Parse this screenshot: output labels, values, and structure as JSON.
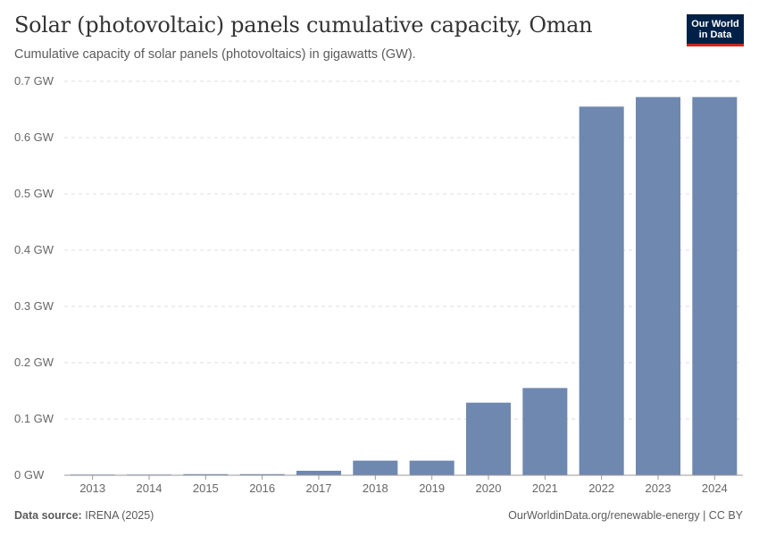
{
  "header": {
    "title": "Solar (photovoltaic) panels cumulative capacity, Oman",
    "subtitle": "Cumulative capacity of solar panels (photovoltaics) in gigawatts (GW).",
    "logo_line1": "Our World",
    "logo_line2": "in Data"
  },
  "footer": {
    "source_label": "Data source:",
    "source_value": "IRENA (2025)",
    "right_text": "OurWorldinData.org/renewable-energy | CC BY"
  },
  "colors": {
    "bar": "#6f88b0",
    "grid": "#dddddd",
    "axis": "#999999"
  },
  "chart_data": {
    "type": "bar",
    "title": "Solar (photovoltaic) panels cumulative capacity, Oman",
    "xlabel": "",
    "ylabel": "",
    "unit": "GW",
    "categories": [
      "2013",
      "2014",
      "2015",
      "2016",
      "2017",
      "2018",
      "2019",
      "2020",
      "2021",
      "2022",
      "2023",
      "2024"
    ],
    "values": [
      0.0008,
      0.001,
      0.002,
      0.002,
      0.008,
      0.026,
      0.026,
      0.129,
      0.155,
      0.655,
      0.672,
      0.672
    ],
    "ylim": [
      0,
      0.7
    ],
    "yticks": [
      0,
      0.1,
      0.2,
      0.3,
      0.4,
      0.5,
      0.6,
      0.7
    ],
    "ytick_labels": [
      "0 GW",
      "0.1 GW",
      "0.2 GW",
      "0.3 GW",
      "0.4 GW",
      "0.5 GW",
      "0.6 GW",
      "0.7 GW"
    ],
    "grid": true
  }
}
